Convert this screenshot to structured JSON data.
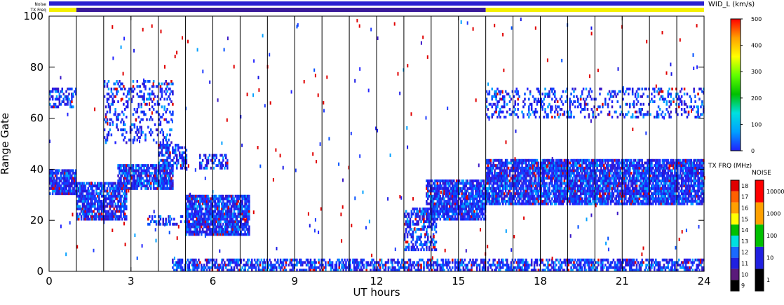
{
  "chart_data": {
    "type": "heatmap",
    "title": "",
    "xlabel": "UT hours",
    "ylabel": "Range Gate",
    "xlim": [
      0,
      24
    ],
    "ylim": [
      0,
      100
    ],
    "x_ticks": [
      "0",
      "3",
      "6",
      "9",
      "12",
      "15",
      "18",
      "21",
      "24"
    ],
    "y_ticks": [
      "0",
      "20",
      "40",
      "60",
      "80",
      "100"
    ],
    "hour_gridlines": [
      1,
      2,
      3,
      4,
      5,
      6,
      7,
      8,
      9,
      10,
      11,
      12,
      13,
      14,
      15,
      16,
      17,
      18,
      19,
      20,
      21,
      22,
      23
    ],
    "status_bars": {
      "noise_label": "Noise",
      "txfreq_label": "TX Freq",
      "noise_color": "#2a1fd0",
      "txfreq_segments": [
        {
          "start": 0,
          "end": 1.0,
          "color": "#f4f000"
        },
        {
          "start": 1.0,
          "end": 16.0,
          "color": "#3a1a9a"
        },
        {
          "start": 16.0,
          "end": 24,
          "color": "#f4f000"
        }
      ]
    },
    "echo_regions": [
      {
        "x0": 0.0,
        "x1": 1.0,
        "y0": 30,
        "y1": 40,
        "density": 0.85
      },
      {
        "x0": 1.0,
        "x1": 2.8,
        "y0": 20,
        "y1": 35,
        "density": 0.8
      },
      {
        "x0": 2.5,
        "x1": 4.5,
        "y0": 32,
        "y1": 42,
        "density": 0.8
      },
      {
        "x0": 4.0,
        "x1": 5.0,
        "y0": 40,
        "y1": 50,
        "density": 0.6
      },
      {
        "x0": 3.5,
        "x1": 5.0,
        "y0": 18,
        "y1": 22,
        "density": 0.35
      },
      {
        "x0": 5.0,
        "x1": 7.3,
        "y0": 14,
        "y1": 30,
        "density": 0.85
      },
      {
        "x0": 5.5,
        "x1": 6.5,
        "y0": 40,
        "y1": 46,
        "density": 0.5
      },
      {
        "x0": 13.8,
        "x1": 16.0,
        "y0": 20,
        "y1": 36,
        "density": 0.85
      },
      {
        "x0": 13.0,
        "x1": 14.2,
        "y0": 8,
        "y1": 25,
        "density": 0.5
      },
      {
        "x0": 16.0,
        "x1": 24.0,
        "y0": 26,
        "y1": 44,
        "density": 0.85
      },
      {
        "x0": 16.0,
        "x1": 24.0,
        "y0": 60,
        "y1": 72,
        "density": 0.25
      },
      {
        "x0": 0.0,
        "x1": 1.0,
        "y0": 64,
        "y1": 72,
        "density": 0.45
      },
      {
        "x0": 2.0,
        "x1": 4.5,
        "y0": 50,
        "y1": 75,
        "density": 0.25
      },
      {
        "x0": 4.5,
        "x1": 24.0,
        "y0": 0,
        "y1": 5,
        "density": 0.6
      }
    ],
    "colorbars": [
      {
        "title": "WID_L (km/s)",
        "type": "continuous",
        "min": 0,
        "max": 500,
        "ticks": [
          "0",
          "100",
          "200",
          "300",
          "400",
          "500"
        ],
        "colors": [
          "#2020ff",
          "#00a0ff",
          "#00e0e0",
          "#00c000",
          "#60ff00",
          "#ffff00",
          "#ffa000",
          "#ff0000"
        ]
      },
      {
        "title": "TX FRQ (MHz)",
        "type": "discrete",
        "ticks": [
          "9",
          "10",
          "11",
          "12",
          "13",
          "14",
          "15",
          "16",
          "17",
          "18"
        ],
        "colors": [
          "#000000",
          "#5a1a7a",
          "#2020e0",
          "#1a6aff",
          "#00e0e0",
          "#00c000",
          "#ffff00",
          "#ffa000",
          "#ff6000",
          "#e00000"
        ]
      },
      {
        "title": "NOISE",
        "type": "discrete",
        "ticks": [
          "1",
          "10",
          "100",
          "1000",
          "10000"
        ],
        "colors": [
          "#000000",
          "#2020e0",
          "#00c000",
          "#ffa000",
          "#ff0000"
        ]
      }
    ]
  }
}
